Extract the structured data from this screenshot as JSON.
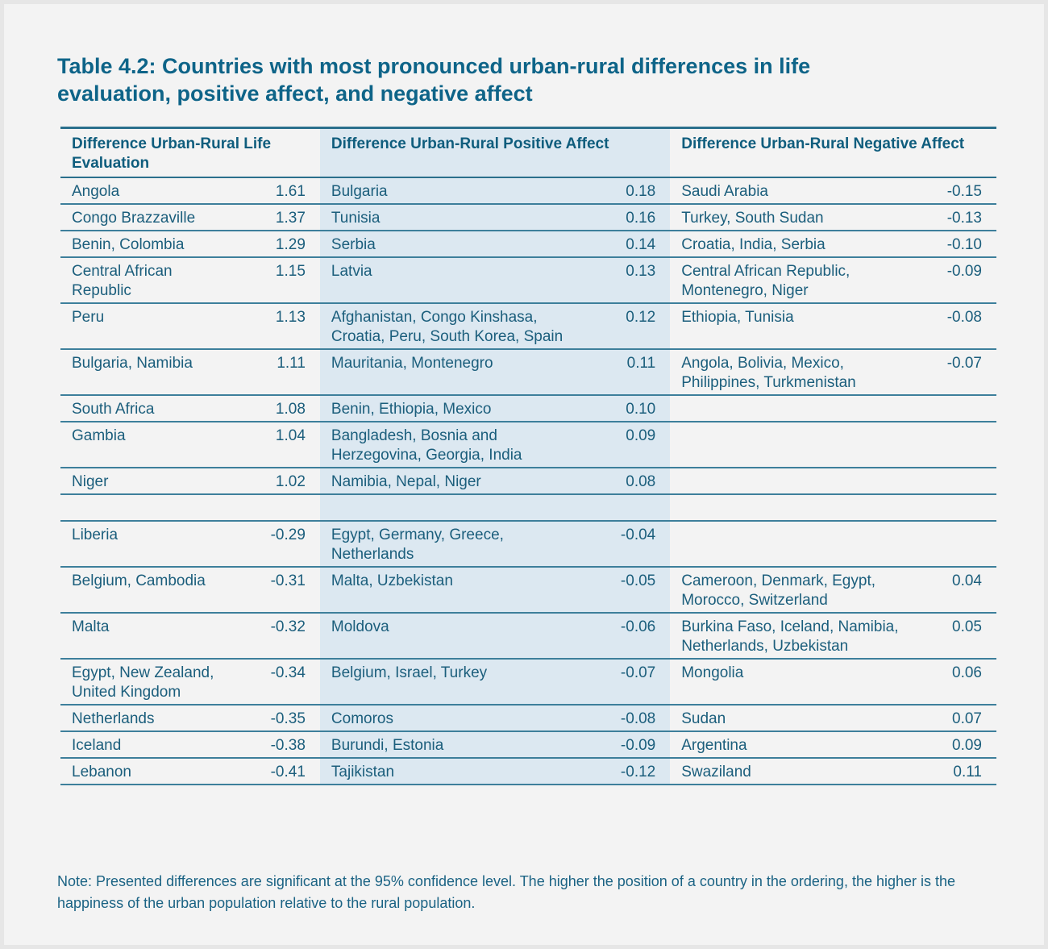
{
  "title": "Table 4.2: Countries with most pronounced urban-rural differences in life evaluation, positive affect, and negative affect",
  "headers": [
    "Difference Urban-Rural Life Evaluation",
    "Difference Urban-Rural Positive Affect",
    "Difference Urban-Rural Negative Affect"
  ],
  "rows": [
    [
      [
        "Angola",
        "1.61"
      ],
      [
        "Bulgaria",
        "0.18"
      ],
      [
        "Saudi Arabia",
        "-0.15"
      ]
    ],
    [
      [
        "Congo Brazzaville",
        "1.37"
      ],
      [
        "Tunisia",
        "0.16"
      ],
      [
        "Turkey, South Sudan",
        "-0.13"
      ]
    ],
    [
      [
        "Benin, Colombia",
        "1.29"
      ],
      [
        "Serbia",
        "0.14"
      ],
      [
        "Croatia, India, Serbia",
        "-0.10"
      ]
    ],
    [
      [
        "Central African Republic",
        "1.15"
      ],
      [
        "Latvia",
        "0.13"
      ],
      [
        "Central African Republic, Montenegro, Niger",
        "-0.09"
      ]
    ],
    [
      [
        "Peru",
        "1.13"
      ],
      [
        "Afghanistan, Congo Kinshasa, Croatia, Peru, South Korea, Spain",
        "0.12"
      ],
      [
        "Ethiopia, Tunisia",
        "-0.08"
      ]
    ],
    [
      [
        "Bulgaria, Namibia",
        "1.11"
      ],
      [
        "Mauritania, Montenegro",
        "0.11"
      ],
      [
        "Angola, Bolivia, Mexico, Philippines, Turkmenistan",
        "-0.07"
      ]
    ],
    [
      [
        "South Africa",
        "1.08"
      ],
      [
        "Benin, Ethiopia, Mexico",
        "0.10"
      ],
      [
        "",
        ""
      ]
    ],
    [
      [
        "Gambia",
        "1.04"
      ],
      [
        "Bangladesh, Bosnia and Herzegovina, Georgia, India",
        "0.09"
      ],
      [
        "",
        ""
      ]
    ],
    [
      [
        "Niger",
        "1.02"
      ],
      [
        "Namibia, Nepal, Niger",
        "0.08"
      ],
      [
        "",
        ""
      ]
    ],
    [
      [
        "",
        ""
      ],
      [
        "",
        ""
      ],
      [
        "",
        ""
      ]
    ],
    [
      [
        "Liberia",
        "-0.29"
      ],
      [
        "Egypt, Germany, Greece, Netherlands",
        "-0.04"
      ],
      [
        "",
        ""
      ]
    ],
    [
      [
        "Belgium, Cambodia",
        "-0.31"
      ],
      [
        "Malta, Uzbekistan",
        "-0.05"
      ],
      [
        "Cameroon, Denmark, Egypt, Morocco, Switzerland",
        "0.04"
      ]
    ],
    [
      [
        "Malta",
        "-0.32"
      ],
      [
        "Moldova",
        "-0.06"
      ],
      [
        "Burkina Faso, Iceland, Namibia, Netherlands, Uzbekistan",
        "0.05"
      ]
    ],
    [
      [
        "Egypt, New Zealand, United Kingdom",
        "-0.34"
      ],
      [
        "Belgium, Israel, Turkey",
        "-0.07"
      ],
      [
        "Mongolia",
        "0.06"
      ]
    ],
    [
      [
        "Netherlands",
        "-0.35"
      ],
      [
        "Comoros",
        "-0.08"
      ],
      [
        "Sudan",
        "0.07"
      ]
    ],
    [
      [
        "Iceland",
        "-0.38"
      ],
      [
        "Burundi, Estonia",
        "-0.09"
      ],
      [
        "Argentina",
        "0.09"
      ]
    ],
    [
      [
        "Lebanon",
        "-0.41"
      ],
      [
        "Tajikistan",
        "-0.12"
      ],
      [
        "Swaziland",
        "0.11"
      ]
    ]
  ],
  "note": "Note: Presented differences are significant at the 95% confidence level. The higher the position of a country in the ordering, the higher is the happiness of the urban population relative to the rural population."
}
